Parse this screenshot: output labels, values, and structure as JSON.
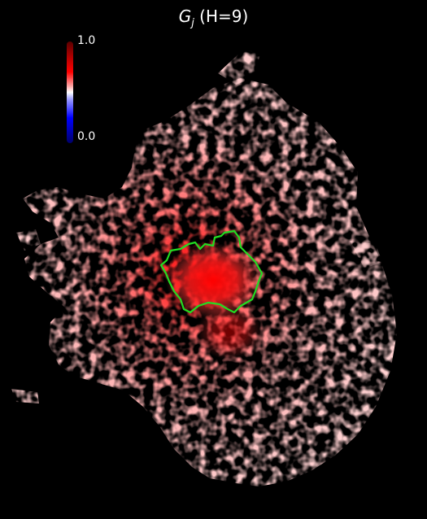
{
  "title": {
    "symbol": "G",
    "subscript": "j",
    "suffix": " (H=9)"
  },
  "colorbar": {
    "max_label": "1.0",
    "min_label": "0.0",
    "colors": [
      "#5a0000",
      "#ff0000",
      "#ffffff",
      "#0000ff",
      "#00006a"
    ]
  },
  "map": {
    "background": "#000000",
    "boundary_color": "#22dd22"
  }
}
